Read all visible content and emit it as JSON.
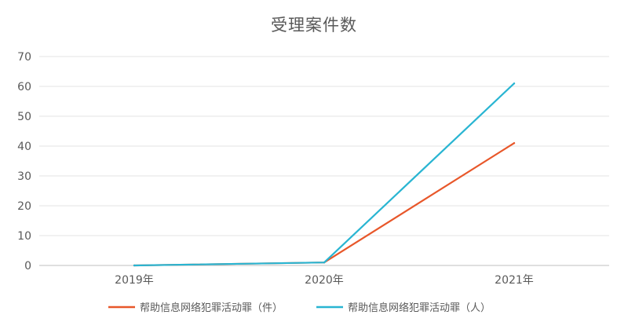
{
  "chart_data": {
    "type": "line",
    "title": "受理案件数",
    "categories": [
      "2019年",
      "2020年",
      "2021年"
    ],
    "series": [
      {
        "name": "帮助信息网络犯罪活动罪（件）",
        "values": [
          0,
          1,
          41
        ],
        "color": "#e8572a"
      },
      {
        "name": "帮助信息网络犯罪活动罪（人）",
        "values": [
          0,
          1,
          61
        ],
        "color": "#29b5d2"
      }
    ],
    "ylim": [
      0,
      70
    ],
    "yticks": [
      0,
      10,
      20,
      30,
      40,
      50,
      60,
      70
    ],
    "grid": true,
    "legend": "bottom"
  }
}
